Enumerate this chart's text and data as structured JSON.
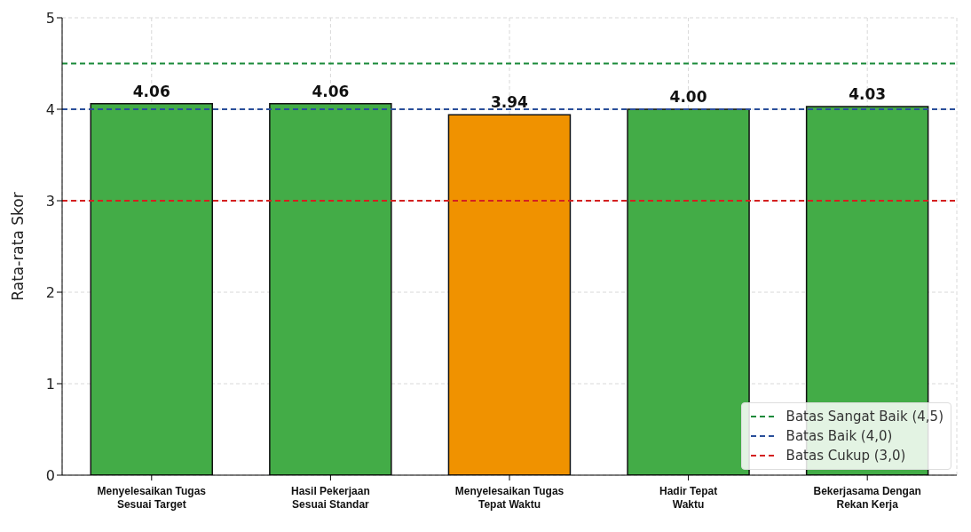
{
  "chart_data": {
    "type": "bar",
    "ylabel": "Rata-rata Skor",
    "categories": [
      "Menyelesaikan Tugas\nSesuai Target",
      "Hasil Pekerjaan\nSesuai Standar",
      "Menyelesaikan Tugas\nTepat Waktu",
      "Hadir Tepat\nWaktu",
      "Bekerjasama Dengan\nRekan Kerja"
    ],
    "values": [
      4.06,
      4.06,
      3.94,
      4.0,
      4.03
    ],
    "colors": [
      "#43ac47",
      "#43ac47",
      "#f09200",
      "#43ac47",
      "#43ac47"
    ],
    "value_labels": [
      "4.06",
      "4.06",
      "3.94",
      "4.00",
      "4.03"
    ],
    "ylim": [
      0,
      5
    ],
    "yticks": [
      0,
      1,
      2,
      3,
      4,
      5
    ],
    "grid": true,
    "legend": "bottom right",
    "ref_lines": [
      {
        "axis": "y",
        "value": 4.5,
        "label": "Batas Sangat Baik (4,5)",
        "color": "#1a8a3a",
        "line_style": "dashed"
      },
      {
        "axis": "y",
        "value": 4.0,
        "label": "Batas Baik (4,0)",
        "color": "#2a4f9a",
        "line_style": "dashed"
      },
      {
        "axis": "y",
        "value": 3.0,
        "label": "Batas Cukup (3,0)",
        "color": "#d42020",
        "line_style": "dashed"
      }
    ]
  }
}
